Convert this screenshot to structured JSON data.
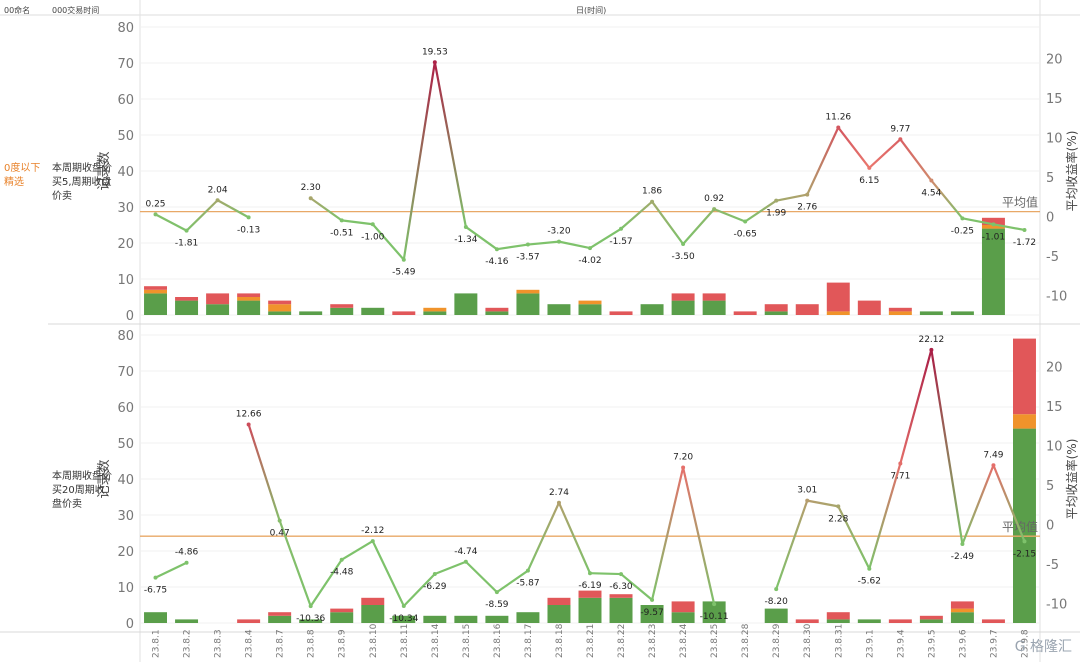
{
  "header": {
    "col1": "00命名",
    "col2": "000交易时间",
    "col3": "日(时间)"
  },
  "filter_label": "0度以下精选",
  "watermark": "G 格隆汇",
  "categories": [
    "23.8.1",
    "23.8.2",
    "23.8.3",
    "23.8.4",
    "23.8.7",
    "23.8.8",
    "23.8.9",
    "23.8.10",
    "23.8.11",
    "23.8.14",
    "23.8.15",
    "23.8.16",
    "23.8.17",
    "23.8.18",
    "23.8.21",
    "23.8.22",
    "23.8.23",
    "23.8.24",
    "23.8.25",
    "23.8.28",
    "23.8.29",
    "23.8.30",
    "23.8.31",
    "23.9.1",
    "23.9.4",
    "23.9.5",
    "23.9.6",
    "23.9.7",
    "23.9.8"
  ],
  "colors": {
    "green": "#5a9e4a",
    "orange": "#f0932b",
    "red": "#e15759",
    "avgline": "#e8a867"
  },
  "chart_data": [
    {
      "type": "bar+line",
      "row_label": "本周期收盘价买5,周期收盘价卖",
      "ylabel": "记录数",
      "y2label": "平均收益率(%)",
      "ylim": [
        0,
        80
      ],
      "y2lim": [
        -12.5,
        24
      ],
      "yticks": [
        0,
        10,
        20,
        30,
        40,
        50,
        60,
        70,
        80
      ],
      "y2ticks": [
        -10,
        -5,
        0,
        5,
        10,
        15,
        20
      ],
      "avg_label": "平均值",
      "avg_value": 0.6,
      "bar_series": [
        {
          "name": "green",
          "values": [
            6,
            4,
            3,
            4,
            1,
            1,
            2,
            2,
            0,
            1,
            6,
            1,
            6,
            3,
            3,
            0,
            3,
            4,
            4,
            0,
            1,
            0,
            0,
            0,
            0,
            1,
            1,
            24,
            0
          ]
        },
        {
          "name": "orange",
          "values": [
            1,
            0,
            0,
            1,
            2,
            0,
            0,
            0,
            0,
            1,
            0,
            0,
            1,
            0,
            1,
            0,
            0,
            0,
            0,
            0,
            0,
            0,
            1,
            0,
            1,
            0,
            0,
            1,
            0
          ]
        },
        {
          "name": "red",
          "values": [
            1,
            1,
            3,
            1,
            1,
            0,
            1,
            0,
            1,
            0,
            0,
            1,
            0,
            0,
            0,
            1,
            0,
            2,
            2,
            1,
            2,
            3,
            8,
            4,
            1,
            0,
            0,
            2,
            0
          ]
        }
      ],
      "line_values": [
        0.25,
        -1.81,
        2.04,
        -0.13,
        null,
        2.3,
        -0.51,
        -1.0,
        -5.49,
        19.53,
        -1.34,
        -4.16,
        -3.57,
        -3.2,
        -4.02,
        -1.57,
        1.86,
        -3.5,
        0.92,
        -0.65,
        1.99,
        2.76,
        11.26,
        6.15,
        9.77,
        4.54,
        -0.25,
        -1.01,
        -1.72
      ],
      "line_labels": [
        "0.25",
        "-1.81",
        "2.04",
        "-0.13",
        "",
        "2.30",
        "-0.51",
        "-1.00",
        "-5.49",
        "19.53",
        "-1.34",
        "-4.16",
        "-3.57",
        "-3.20",
        "-4.02",
        "-1.57",
        "1.86",
        "-3.50",
        "0.92",
        "-0.65",
        "1.99",
        "2.76",
        "11.26",
        "6.15",
        "9.77",
        "4.54",
        "-0.25",
        "-1.01",
        "-1.72"
      ]
    },
    {
      "type": "bar+line",
      "row_label": "本周期收盘价买20周期收盘价卖",
      "ylabel": "记录数",
      "y2label": "平均收益率(%)",
      "ylim": [
        0,
        80
      ],
      "y2lim": [
        -12.5,
        24
      ],
      "yticks": [
        0,
        10,
        20,
        30,
        40,
        50,
        60,
        70,
        80
      ],
      "y2ticks": [
        -10,
        -5,
        0,
        5,
        10,
        15,
        20
      ],
      "avg_label": "平均值",
      "avg_value": -1.5,
      "bar_series": [
        {
          "name": "green",
          "values": [
            3,
            1,
            0,
            0,
            2,
            1,
            3,
            5,
            2,
            2,
            2,
            2,
            3,
            5,
            7,
            7,
            5,
            3,
            6,
            0,
            4,
            0,
            1,
            1,
            0,
            1,
            3,
            0,
            54
          ]
        },
        {
          "name": "orange",
          "values": [
            0,
            0,
            0,
            0,
            0,
            0,
            0,
            0,
            0,
            0,
            0,
            0,
            0,
            0,
            0,
            0,
            0,
            0,
            0,
            0,
            0,
            0,
            0,
            0,
            0,
            0,
            1,
            0,
            4
          ]
        },
        {
          "name": "red",
          "values": [
            0,
            0,
            0,
            1,
            1,
            0,
            1,
            2,
            0,
            0,
            0,
            0,
            0,
            2,
            2,
            1,
            0,
            3,
            0,
            0,
            0,
            1,
            2,
            0,
            1,
            1,
            2,
            1,
            21
          ]
        }
      ],
      "line_values": [
        -6.75,
        -4.86,
        null,
        12.66,
        0.47,
        -10.36,
        -4.48,
        -2.12,
        -10.34,
        -6.29,
        -4.74,
        -8.59,
        -5.87,
        2.74,
        -6.19,
        -6.3,
        -9.57,
        7.2,
        -10.11,
        null,
        -8.2,
        3.01,
        2.28,
        -5.62,
        7.71,
        22.12,
        -2.49,
        7.49,
        -2.15
      ],
      "line_labels": [
        "-6.75",
        "-4.86",
        "",
        "12.66",
        "0.47",
        "-10.36",
        "-4.48",
        "-2.12",
        "-10.34",
        "-6.29",
        "-4.74",
        "-8.59",
        "-5.87",
        "2.74",
        "-6.19",
        "-6.30",
        "-9.57",
        "7.20",
        "-10.11",
        "",
        "-8.20",
        "3.01",
        "2.28",
        "-5.62",
        "7.71",
        "22.12",
        "-2.49",
        "7.49",
        "-2.15"
      ]
    }
  ]
}
